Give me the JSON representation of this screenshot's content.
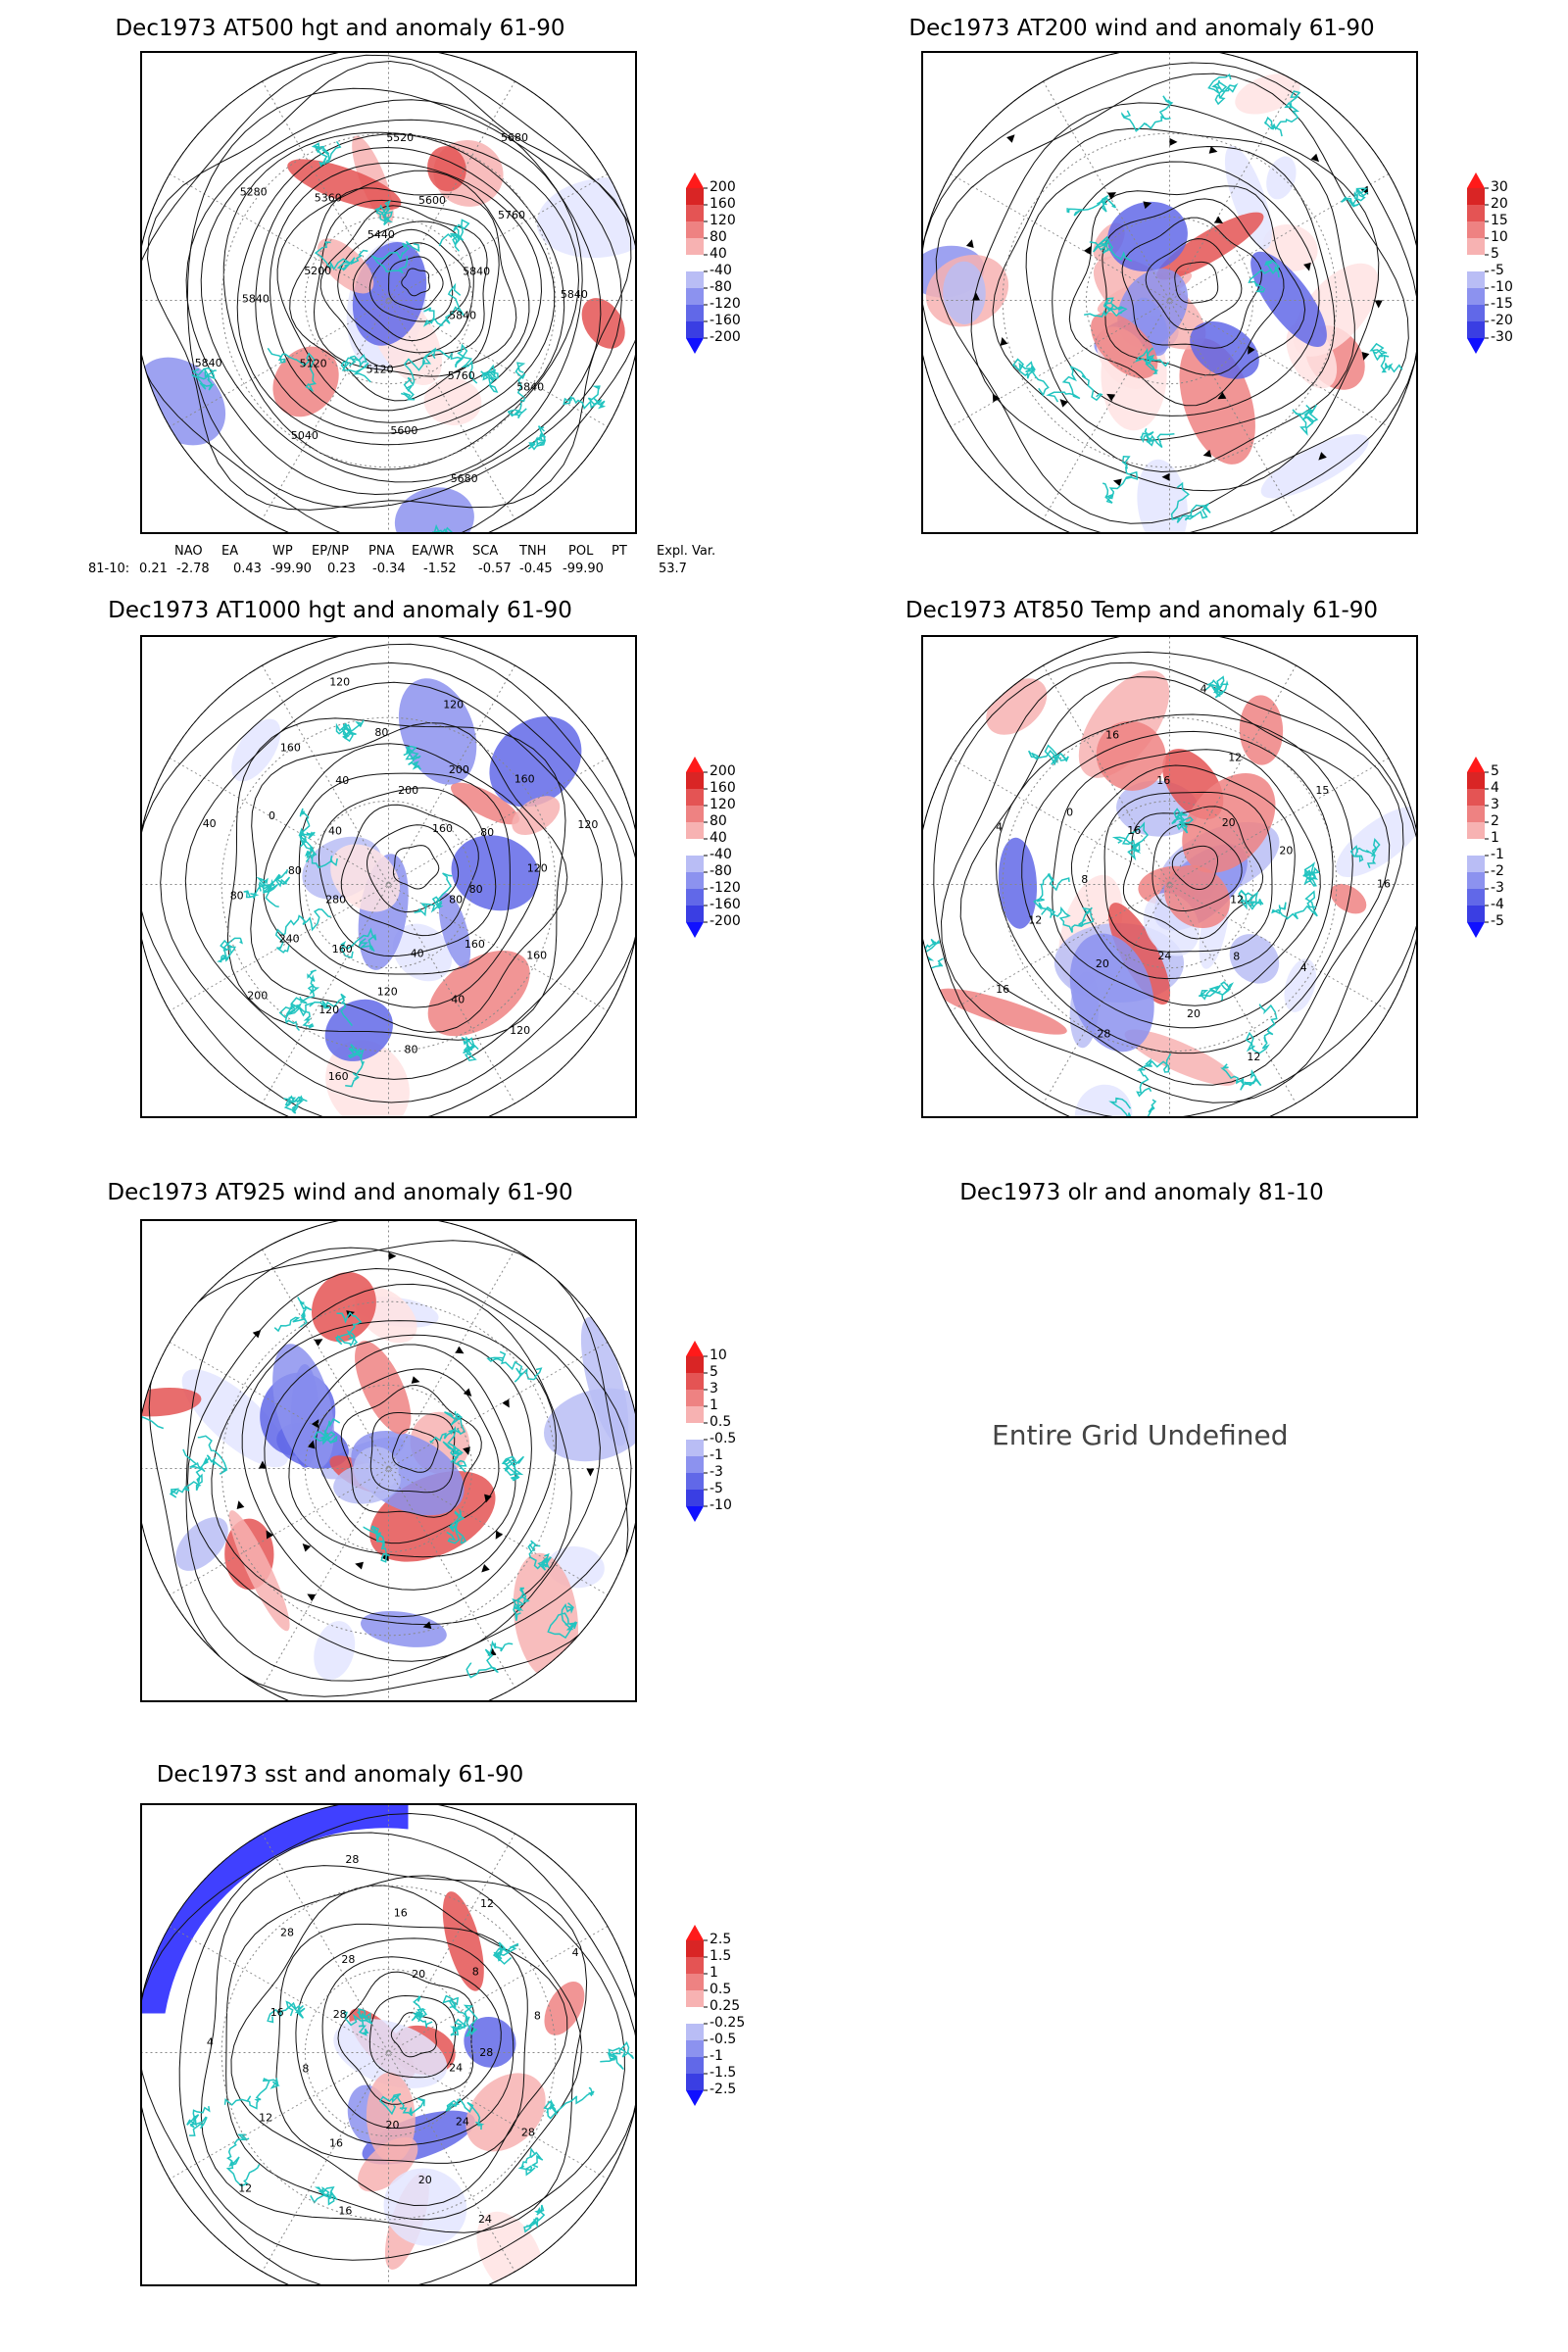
{
  "colors": {
    "land_coast": "#22c4c0",
    "contour": "#111111",
    "pos_scale": [
      "#ffe3e3",
      "#f7b2b2",
      "#ee8282",
      "#e45454",
      "#d92525",
      "#ff1a1a"
    ],
    "neg_scale": [
      "#e3e5ff",
      "#b9bdf5",
      "#8c92ef",
      "#6168e8",
      "#3a3ee3",
      "#1010ff"
    ]
  },
  "panels": [
    {
      "id": "at500",
      "title": "Dec1973 AT500 hgt and anomaly 61-90",
      "colorbar": [
        "200",
        "160",
        "120",
        "80",
        "40",
        "-40",
        "-80",
        "-120",
        "-160",
        "-200"
      ],
      "contour_labels": [
        "5840",
        "5840",
        "5760",
        "5680",
        "5600",
        "5120",
        "5040",
        "5120",
        "5840",
        "5840",
        "5200",
        "5280",
        "5360",
        "5440",
        "5520",
        "5600",
        "5680",
        "5760",
        "5840",
        "5840"
      ]
    },
    {
      "id": "at200",
      "title": "Dec1973 AT200 wind and anomaly 61-90",
      "colorbar": [
        "30",
        "20",
        "15",
        "10",
        "5",
        "-5",
        "-10",
        "-15",
        "-20",
        "-30"
      ],
      "contour_labels": []
    },
    {
      "id": "at1000",
      "title": "Dec1973 AT1000 hgt and anomaly 61-90",
      "colorbar": [
        "200",
        "160",
        "120",
        "80",
        "40",
        "-40",
        "-80",
        "-120",
        "-160",
        "-200"
      ],
      "contour_labels": [
        "80",
        "160",
        "160",
        "120",
        "40",
        "40",
        "80",
        "120",
        "160",
        "120",
        "160",
        "200",
        "240",
        "280",
        "80",
        "80",
        "40",
        "0",
        "40",
        "160",
        "40",
        "120",
        "80",
        "200",
        "120",
        "200",
        "160",
        "160",
        "80",
        "120",
        "120",
        "80"
      ]
    },
    {
      "id": "at850",
      "title": "Dec1973 AT850 Temp and anomaly 61-90",
      "colorbar": [
        "5",
        "4",
        "3",
        "2",
        "1",
        "-1",
        "-2",
        "-3",
        "-4",
        "-5"
      ],
      "contour_labels": [
        "12",
        "4",
        "8",
        "12",
        "20",
        "24",
        "28",
        "20",
        "16",
        "12",
        "8",
        "4",
        "0",
        "16",
        "16",
        "16",
        "4",
        "12",
        "20",
        "15",
        "20",
        "16"
      ]
    },
    {
      "id": "at925",
      "title": "Dec1973 AT925 wind and anomaly 61-90",
      "colorbar": [
        "10",
        "5",
        "3",
        "1",
        "0.5",
        "-0.5",
        "-1",
        "-3",
        "-5",
        "-10"
      ],
      "contour_labels": []
    },
    {
      "id": "olr",
      "title": "Dec1973 olr and anomaly 81-10",
      "undefined_message": "Entire Grid Undefined"
    },
    {
      "id": "sst",
      "title": "Dec1973 sst and anomaly 61-90",
      "colorbar": [
        "2.5",
        "1.5",
        "1",
        "0.5",
        "0.25",
        "-0.25",
        "-0.5",
        "-1",
        "-1.5",
        "-2.5"
      ],
      "contour_labels": [
        "24",
        "28",
        "24",
        "24",
        "20",
        "20",
        "16",
        "16",
        "12",
        "12",
        "8",
        "4",
        "16",
        "28",
        "28",
        "28",
        "28",
        "16",
        "20",
        "12",
        "8",
        "4",
        "8",
        "28"
      ]
    }
  ],
  "teleconnection": {
    "headers": [
      "NAO",
      "EA",
      "WP",
      "EP/NP",
      "PNA",
      "EA/WR",
      "SCA",
      "TNH",
      "POL",
      "PT",
      "Expl. Var."
    ],
    "row_label": "81-10:",
    "values": [
      "0.21",
      "-2.78",
      "0.43",
      "-99.90",
      "0.23",
      "-0.34",
      "-1.52",
      "-0.57",
      "-0.45",
      "-99.90",
      "53.7"
    ]
  }
}
